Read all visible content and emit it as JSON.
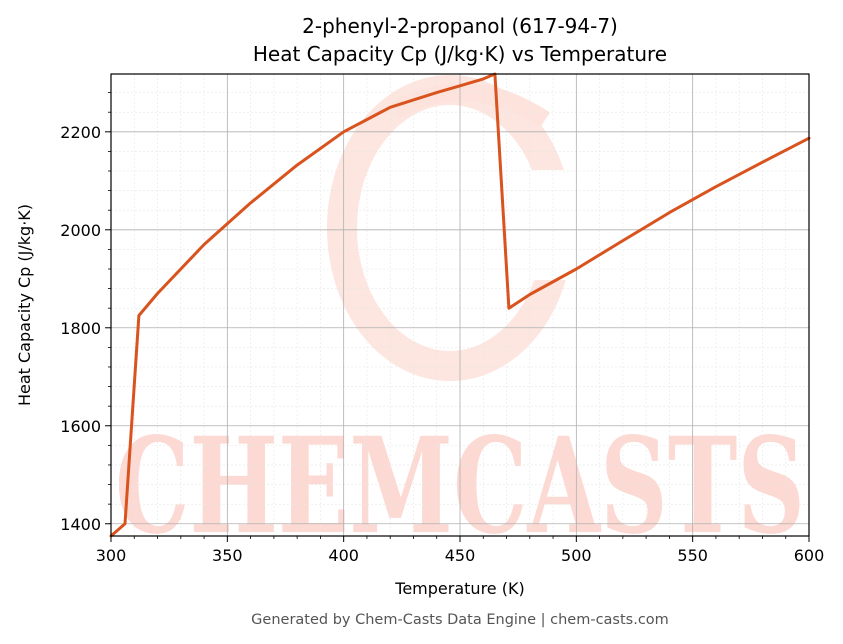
{
  "chart_data": {
    "type": "line",
    "title": "2-phenyl-2-propanol (617-94-7)",
    "subtitle": "Heat Capacity Cp (J/kg·K) vs Temperature",
    "xlabel": "Temperature (K)",
    "ylabel": "Heat Capacity Cp (J/kg·K)",
    "xlim": [
      300,
      600
    ],
    "ylim": [
      1375,
      2318
    ],
    "xticks": [
      300,
      350,
      400,
      450,
      500,
      550,
      600
    ],
    "yticks": [
      1400,
      1600,
      1800,
      2000,
      2200
    ],
    "grid": true,
    "line_color": "#d9531e",
    "series": [
      {
        "name": "",
        "x": [
          300,
          306,
          312,
          320,
          340,
          360,
          380,
          400,
          420,
          440,
          450,
          460,
          465,
          471,
          480,
          500,
          520,
          540,
          560,
          580,
          600
        ],
        "y": [
          1375,
          1400,
          1825,
          1870,
          1970,
          2055,
          2132,
          2200,
          2250,
          2280,
          2294,
          2308,
          2318,
          1840,
          1868,
          1920,
          1978,
          2035,
          2088,
          2138,
          2187
        ]
      }
    ]
  },
  "watermark": {
    "text": "CHEMCASTS",
    "color": "#fcd9d2"
  },
  "footer": "Generated by Chem-Casts Data Engine | chem-casts.com"
}
